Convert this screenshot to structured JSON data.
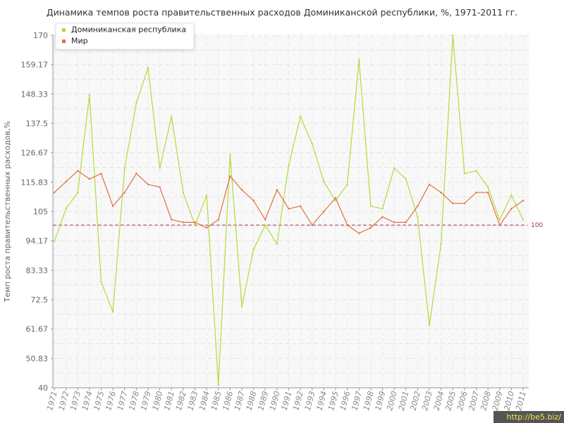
{
  "chart_data": {
    "type": "line",
    "title": "Динамика темпов роста правительственных расходов Доминиканской республики, %, 1971-2011 гг.",
    "ylabel": "Темп роста правительственных расходов,%",
    "xlabel": "",
    "ylim": [
      40,
      170
    ],
    "yticks": [
      "40",
      "50.83",
      "61.67",
      "72.5",
      "83.33",
      "94.17",
      "105",
      "115.83",
      "126.67",
      "137.5",
      "148.33",
      "159.17",
      "170"
    ],
    "categories": [
      "1971",
      "1972",
      "1973",
      "1974",
      "1975",
      "1976",
      "1977",
      "1978",
      "1979",
      "1980",
      "1981",
      "1982",
      "1983",
      "1984",
      "1985",
      "1986",
      "1987",
      "1988",
      "1989",
      "1990",
      "1991",
      "1992",
      "1993",
      "1994",
      "1995",
      "1996",
      "1997",
      "1998",
      "1999",
      "2000",
      "2001",
      "2002",
      "2003",
      "2004",
      "2005",
      "2006",
      "2007",
      "2008",
      "2009",
      "2010",
      "2011"
    ],
    "series": [
      {
        "name": "Доминиканская республика",
        "color": "#b5d93a",
        "values": [
          94,
          106,
          112,
          148,
          79,
          68,
          121,
          145,
          158,
          121,
          140,
          112,
          100,
          111,
          41,
          126,
          70,
          91,
          100,
          93,
          122,
          140,
          130,
          116,
          109,
          115,
          161,
          107,
          106,
          121,
          117,
          103,
          63,
          93,
          170,
          119,
          120,
          114,
          102,
          111,
          102
        ]
      },
      {
        "name": "Мир",
        "color": "#e07040",
        "values": [
          112,
          116,
          120,
          117,
          119,
          107,
          112,
          119,
          115,
          114,
          102,
          101,
          101,
          99,
          102,
          118,
          113,
          109,
          102,
          113,
          106,
          107,
          100,
          105,
          110,
          100,
          97,
          99,
          103,
          101,
          101,
          107,
          115,
          112,
          108,
          108,
          112,
          112,
          100,
          106,
          109
        ]
      }
    ],
    "reference_line": {
      "value": 100,
      "label": "100",
      "color": "#9b3a4a"
    },
    "legend_position": "top-left",
    "grid": true
  },
  "watermark": "http://be5.biz/"
}
